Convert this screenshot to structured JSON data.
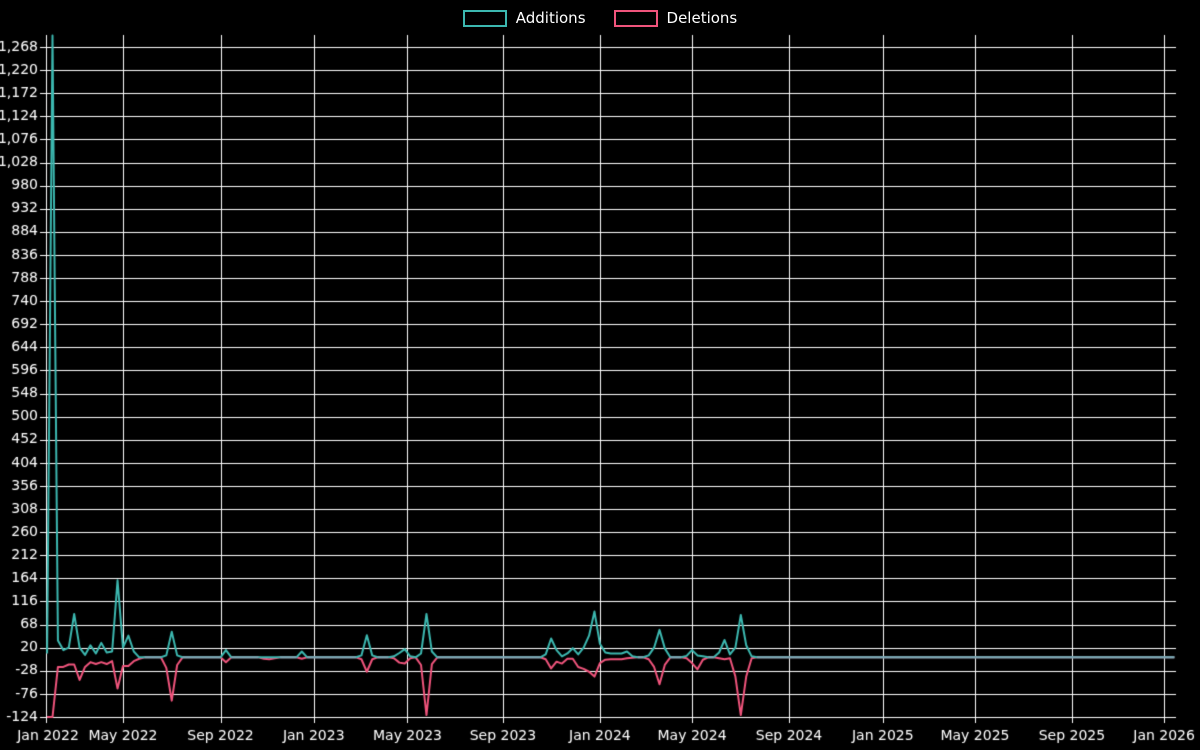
{
  "page": {
    "background": "#000000",
    "text_color": "#ffffff",
    "grid_color": "#ffffff"
  },
  "legend": {
    "items": [
      {
        "label": "Additions",
        "color": "#3cb8b0"
      },
      {
        "label": "Deletions",
        "color": "#f0547c"
      }
    ]
  },
  "chart_data": {
    "type": "line",
    "title": "",
    "xlabel": "",
    "ylabel": "",
    "grid": true,
    "legend_position": "top-center",
    "x_unit": "weeks since Jan 2022",
    "xlim_weeks": [
      2.8,
      211.3
    ],
    "ylim": [
      -124,
      1268
    ],
    "y_tick_step": 48,
    "y_ticks": [
      -124,
      -76,
      -28,
      20,
      68,
      116,
      164,
      212,
      260,
      308,
      356,
      404,
      452,
      500,
      548,
      596,
      644,
      692,
      740,
      788,
      836,
      884,
      932,
      980,
      1028,
      1076,
      1124,
      1172,
      1220,
      1268
    ],
    "x_ticks": [
      {
        "label": "Jan 2022",
        "week": 0
      },
      {
        "label": "May 2022",
        "week": 17
      },
      {
        "label": "Sep 2022",
        "week": 35
      },
      {
        "label": "Jan 2023",
        "week": 52.2
      },
      {
        "label": "May 2023",
        "week": 69.5
      },
      {
        "label": "Sep 2023",
        "week": 87.1
      },
      {
        "label": "Jan 2024",
        "week": 105
      },
      {
        "label": "May 2024",
        "week": 122
      },
      {
        "label": "Sep 2024",
        "week": 139.9
      },
      {
        "label": "Jan 2025",
        "week": 157.2
      },
      {
        "label": "May 2025",
        "week": 174.2
      },
      {
        "label": "Sep 2025",
        "week": 192.1
      },
      {
        "label": "Jan 2026",
        "week": 209.1
      }
    ],
    "series": [
      {
        "name": "Additions",
        "color": "#3cb8b0",
        "sign": "positive"
      },
      {
        "name": "Deletions",
        "color": "#f0547c",
        "sign": "negative"
      }
    ],
    "flat_zero_overlap_color": "#7fa6b5",
    "weeks_range": [
      3,
      211
    ],
    "default_value": 0,
    "points": {
      "3": [
        8,
        -124
      ],
      "4": [
        1292,
        -124
      ],
      "5": [
        35,
        -20
      ],
      "6": [
        15,
        -20
      ],
      "7": [
        20,
        -15
      ],
      "8": [
        90,
        -15
      ],
      "9": [
        20,
        -47
      ],
      "10": [
        5,
        -20
      ],
      "11": [
        25,
        -10
      ],
      "12": [
        8,
        -14
      ],
      "13": [
        30,
        -10
      ],
      "14": [
        10,
        -14
      ],
      "15": [
        12,
        -8
      ],
      "16": [
        160,
        -65
      ],
      "17": [
        20,
        -18
      ],
      "18": [
        45,
        -18
      ],
      "19": [
        12,
        -8
      ],
      "20": [
        0,
        -3
      ],
      "25": [
        4,
        -22
      ],
      "26": [
        53,
        -90
      ],
      "27": [
        4,
        -16
      ],
      "36": [
        15,
        -10
      ],
      "43": [
        0,
        -3
      ],
      "44": [
        0,
        -4
      ],
      "45": [
        0,
        -2
      ],
      "50": [
        12,
        -3
      ],
      "61": [
        4,
        -4
      ],
      "62": [
        46,
        -30
      ],
      "63": [
        4,
        -4
      ],
      "67": [
        2,
        -2
      ],
      "68": [
        9,
        -11
      ],
      "69": [
        17,
        -13
      ],
      "70": [
        2,
        -2
      ],
      "72": [
        8,
        -16
      ],
      "73": [
        90,
        -120
      ],
      "74": [
        12,
        -14
      ],
      "95": [
        6,
        -4
      ],
      "96": [
        39,
        -23
      ],
      "97": [
        15,
        -9
      ],
      "98": [
        2,
        -13
      ],
      "99": [
        8,
        -3
      ],
      "100": [
        19,
        -3
      ],
      "101": [
        6,
        -20
      ],
      "102": [
        20,
        -24
      ],
      "103": [
        45,
        -30
      ],
      "104": [
        95,
        -40
      ],
      "105": [
        28,
        -12
      ],
      "106": [
        10,
        -5
      ],
      "107": [
        8,
        -4
      ],
      "108": [
        8,
        -4
      ],
      "109": [
        8,
        -4
      ],
      "110": [
        12,
        -2
      ],
      "111": [
        2,
        -1
      ],
      "114": [
        4,
        -4
      ],
      "115": [
        20,
        -20
      ],
      "116": [
        57,
        -56
      ],
      "117": [
        18,
        -15
      ],
      "121": [
        3,
        -2
      ],
      "122": [
        15,
        -12
      ],
      "123": [
        4,
        -25
      ],
      "124": [
        2,
        -5
      ],
      "127": [
        10,
        -2
      ],
      "128": [
        36,
        -4
      ],
      "129": [
        6,
        -2
      ],
      "130": [
        20,
        -40
      ],
      "131": [
        88,
        -120
      ],
      "132": [
        25,
        -40
      ],
      "133": [
        2,
        -2
      ]
    }
  }
}
